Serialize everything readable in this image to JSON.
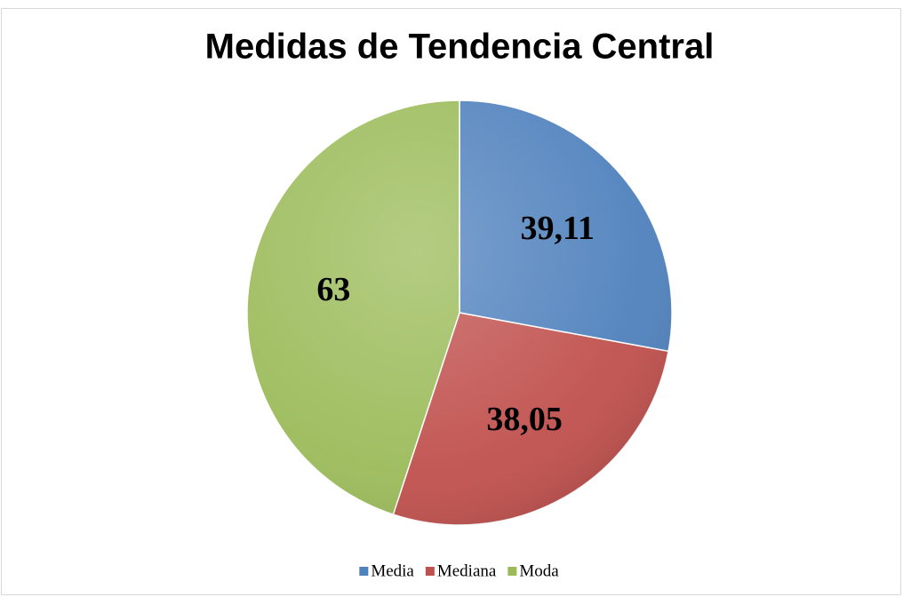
{
  "chart_data": {
    "type": "pie",
    "title": "Medidas de Tendencia Central",
    "categories": [
      "Media",
      "Mediana",
      "Moda"
    ],
    "values": [
      39.11,
      38.05,
      63
    ],
    "value_labels": [
      "39,11",
      "38,05",
      "63"
    ],
    "colors": [
      "#4f81bd",
      "#c0504d",
      "#9bbb59"
    ],
    "legend": "bottom"
  }
}
